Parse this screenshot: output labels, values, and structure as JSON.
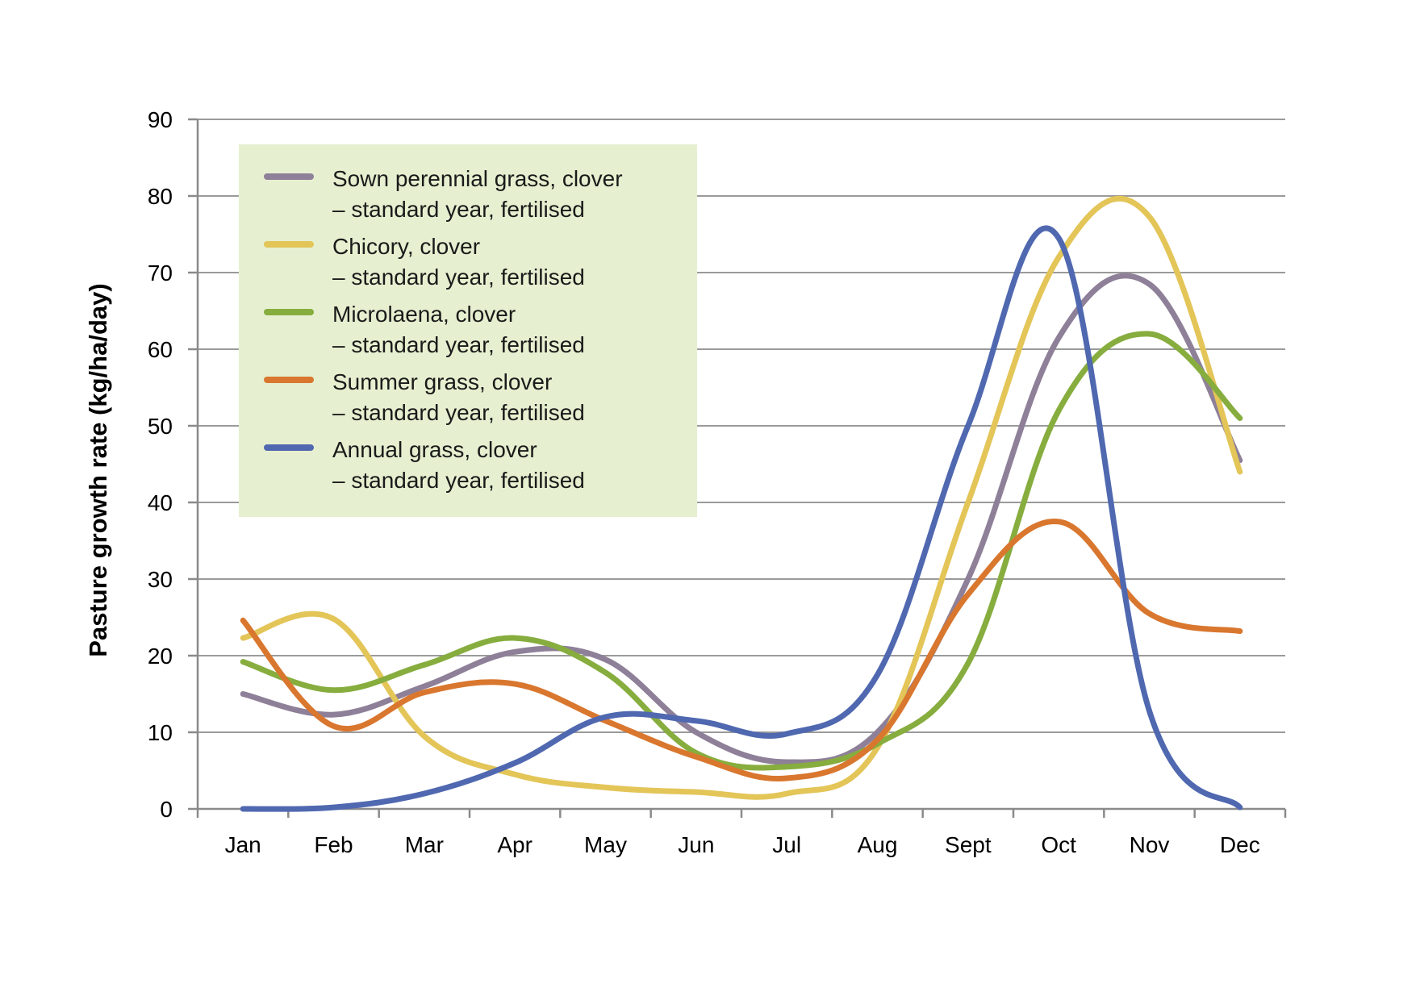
{
  "chart_data": {
    "type": "line",
    "ylabel": "Pasture growth rate (kg/ha/day)",
    "xlabel": "",
    "categories": [
      "Jan",
      "Feb",
      "Mar",
      "Apr",
      "May",
      "Jun",
      "Jul",
      "Aug",
      "Sept",
      "Oct",
      "Nov",
      "Dec"
    ],
    "ylim": [
      0,
      90
    ],
    "yticks": [
      "0",
      "10",
      "20",
      "30",
      "40",
      "50",
      "60",
      "70",
      "80",
      "90"
    ],
    "grid": true,
    "legend_position": "top-left",
    "legend_background": "#e6f0d0",
    "series": [
      {
        "name": "Sown perennial grass, clover",
        "subtitle": "– standard year, fertilised",
        "color": "#8e8098",
        "values": [
          15,
          12.3,
          16,
          20.5,
          19.5,
          10,
          6.1,
          10,
          30,
          61.5,
          68.5,
          45.5
        ]
      },
      {
        "name": "Chicory, clover",
        "subtitle": "– standard year, fertilised",
        "color": "#e3c558",
        "values": [
          22.3,
          24.8,
          9.5,
          4.5,
          2.8,
          2.2,
          2,
          8,
          40,
          72,
          77.3,
          44
        ]
      },
      {
        "name": "Microlaena, clover",
        "subtitle": "– standard year, fertilised",
        "color": "#86ad3e",
        "values": [
          19.2,
          15.5,
          18.8,
          22.3,
          17.8,
          7.3,
          5.5,
          8.5,
          19,
          52,
          62,
          51
        ]
      },
      {
        "name": "Summer grass, clover",
        "subtitle": "– standard year, fertilised",
        "color": "#d9772f",
        "values": [
          24.6,
          10.8,
          15.2,
          16.3,
          11.5,
          6.8,
          4,
          9,
          28,
          37.5,
          25.5,
          23.2
        ]
      },
      {
        "name": "Annual grass, clover",
        "subtitle": "– standard year, fertilised",
        "color": "#4f68b0",
        "values": [
          0,
          0.2,
          2,
          6,
          12,
          11.5,
          9.8,
          17.5,
          50,
          74.5,
          12.8,
          0.2
        ]
      }
    ]
  }
}
